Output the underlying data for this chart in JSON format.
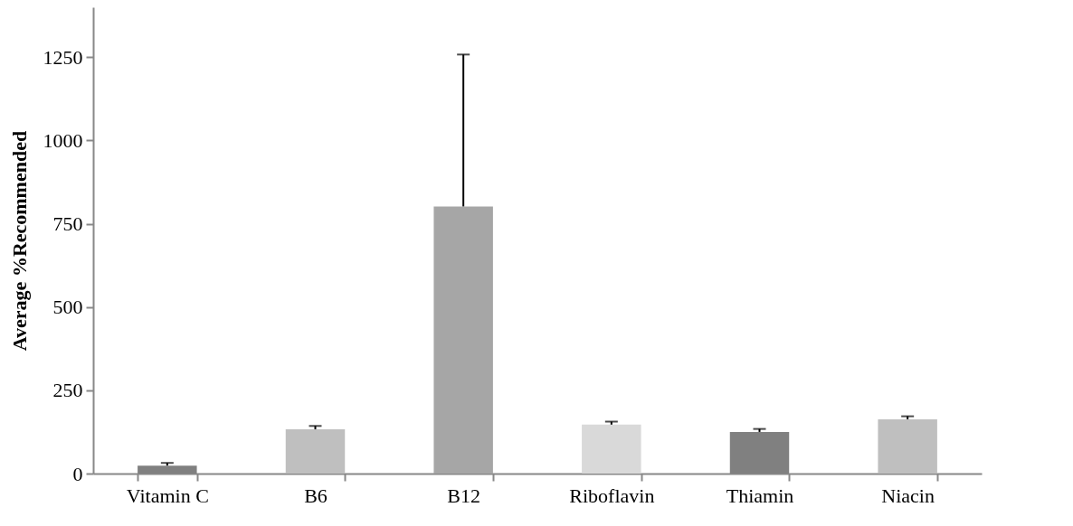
{
  "chart_data": {
    "type": "bar",
    "ylabel": "Average %Recommended",
    "categories": [
      "Vitamin C",
      "B6",
      "B12",
      "Riboflavin",
      "Thiamin",
      "Niacin"
    ],
    "values": [
      24,
      133,
      802,
      147,
      125,
      163
    ],
    "colors": [
      "#808080",
      "#bfbfbf",
      "#a6a6a6",
      "#d9d9d9",
      "#808080",
      "#bfbfbf"
    ],
    "errors": [
      [
        24,
        32
      ],
      [
        133,
        143
      ],
      [
        802,
        1258
      ],
      [
        147,
        156
      ],
      [
        125,
        134
      ],
      [
        163,
        172
      ]
    ],
    "ylim": [
      0,
      1400
    ],
    "yticks": [
      0,
      250,
      500,
      750,
      1000,
      1250
    ],
    "grid": false,
    "legend": false
  }
}
